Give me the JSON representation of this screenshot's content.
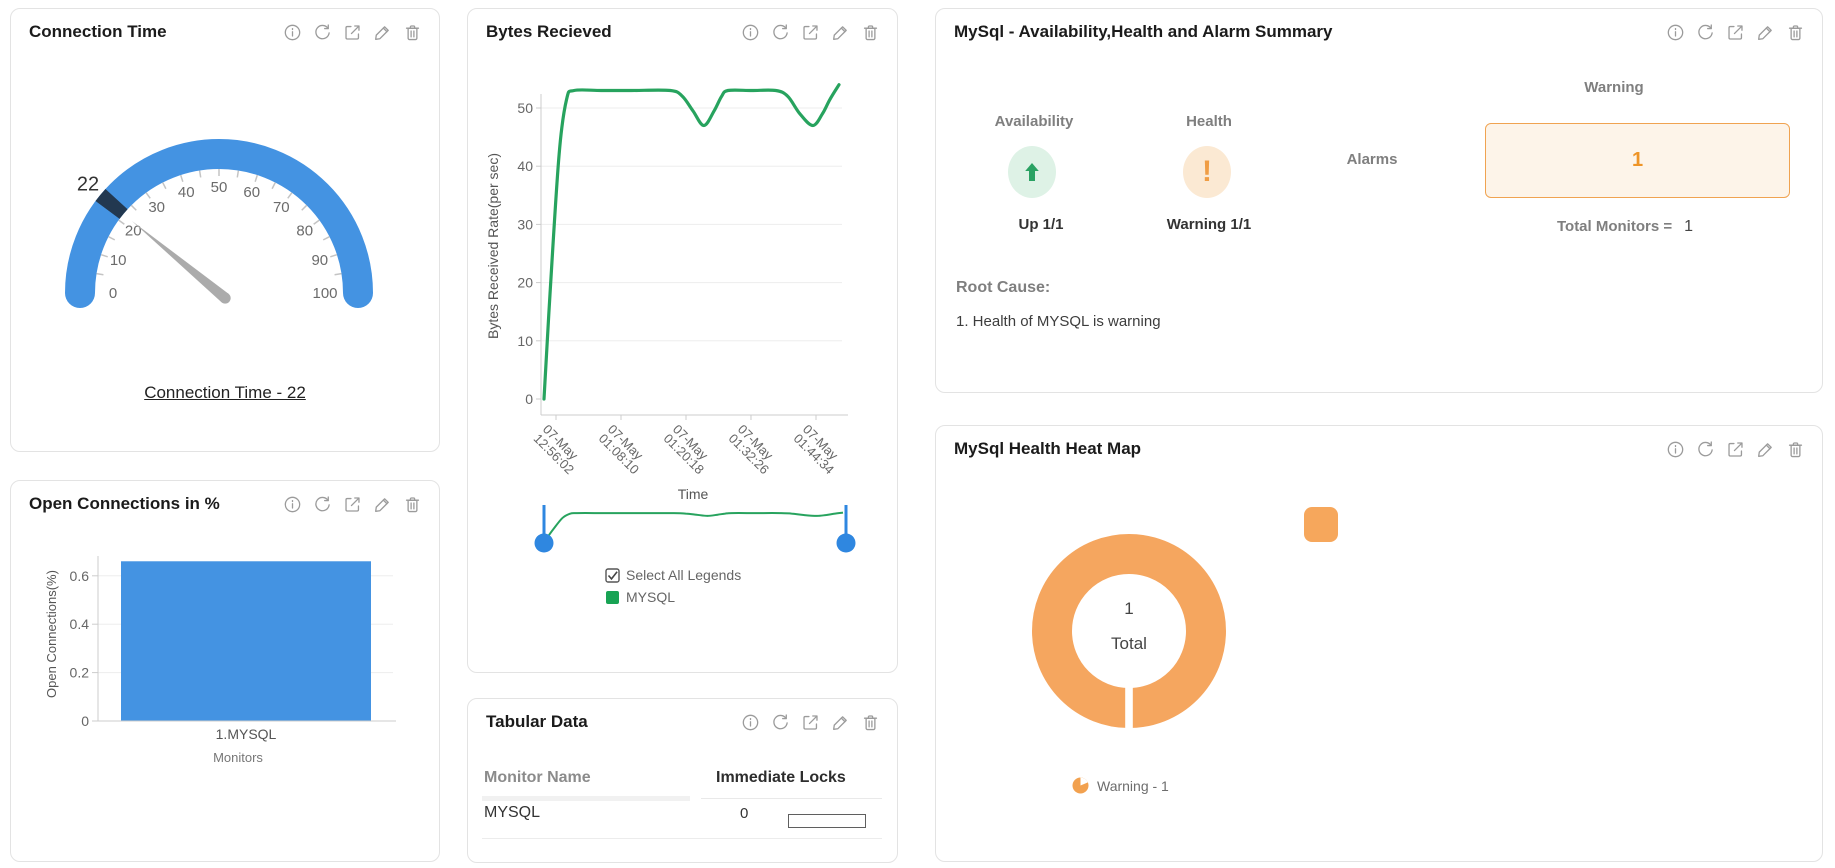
{
  "colors": {
    "blue": "#4493e2",
    "slider_blue": "#2f87e0",
    "line_green": "#27a35e",
    "legend_green": "#18a354",
    "donut_orange": "#f5a65f",
    "gauge_band": "#223850",
    "needle_gray": "#ababab",
    "axis_gray": "#cccccc",
    "grid_gray": "#ededed",
    "tick_text": "#6b6b6b"
  },
  "toolbar": {
    "icons": [
      "info",
      "refresh",
      "open-in-new",
      "edit",
      "delete"
    ]
  },
  "cards": {
    "connection_time": {
      "title": "Connection Time",
      "gauge": {
        "min": 0,
        "max": 100,
        "value": 22,
        "value_label": "22",
        "tick_labels": [
          "0",
          "10",
          "20",
          "30",
          "40",
          "50",
          "60",
          "70",
          "80",
          "90",
          "100"
        ]
      },
      "link_label": "Connection Time - 22"
    },
    "open_connections": {
      "title": "Open Connections in %",
      "ylabel": "Open Connections(%)",
      "xlabel": "Monitors",
      "yticks": [
        0,
        0.2,
        0.4,
        0.6
      ],
      "categories": [
        "1.MYSQL"
      ],
      "values": [
        0.66
      ]
    },
    "bytes_received": {
      "title": "Bytes Recieved",
      "ylabel": "Bytes Received Rate(per sec)",
      "xlabel": "Time",
      "yticks": [
        0,
        10,
        20,
        30,
        40,
        50
      ],
      "xticks": [
        [
          "07-May",
          "12:56:02"
        ],
        [
          "07-May",
          "01:08:10"
        ],
        [
          "07-May",
          "01:20:18"
        ],
        [
          "07-May",
          "01:32:26"
        ],
        [
          "07-May",
          "01:44:34"
        ]
      ],
      "series": {
        "name": "MYSQL",
        "points": [
          [
            0.01,
            0
          ],
          [
            0.03,
            18
          ],
          [
            0.06,
            42
          ],
          [
            0.085,
            51.5
          ],
          [
            0.11,
            53
          ],
          [
            0.2,
            53
          ],
          [
            0.3,
            53
          ],
          [
            0.43,
            53
          ],
          [
            0.47,
            52
          ],
          [
            0.505,
            49.5
          ],
          [
            0.541,
            47
          ],
          [
            0.575,
            49.5
          ],
          [
            0.6,
            52
          ],
          [
            0.621,
            53
          ],
          [
            0.7,
            53
          ],
          [
            0.78,
            53
          ],
          [
            0.82,
            52
          ],
          [
            0.86,
            49
          ],
          [
            0.903,
            47
          ],
          [
            0.935,
            49
          ],
          [
            0.96,
            51.5
          ],
          [
            0.99,
            54
          ]
        ]
      },
      "legend": {
        "select_all_label": "Select All Legends",
        "series_label": "MYSQL",
        "select_all_checked": true
      }
    },
    "tabular_data": {
      "title": "Tabular Data",
      "columns": [
        "Monitor Name",
        "Immediate Locks"
      ],
      "rows": [
        {
          "monitor_name": "MYSQL",
          "immediate_locks": "0"
        }
      ]
    },
    "summary": {
      "title": "MySql - Availability,Health and Alarm Summary",
      "availability": {
        "label": "Availability",
        "status": "Up 1/1"
      },
      "health": {
        "label": "Health",
        "status": "Warning 1/1"
      },
      "alarms": {
        "label": "Alarms",
        "severity_label": "Warning",
        "count": "1"
      },
      "total_monitors": {
        "label": "Total Monitors =",
        "value": "1"
      },
      "root_cause": {
        "label": "Root Cause:",
        "items": [
          "1. Health of MYSQL is warning"
        ]
      }
    },
    "heat_map": {
      "title": "MySql Health Heat Map",
      "donut": {
        "value": "1",
        "label": "Total",
        "slices": [
          {
            "name": "Warning",
            "value": 1
          }
        ]
      },
      "legend_label": "Warning - 1"
    }
  },
  "chart_data": [
    {
      "type": "gauge",
      "title": "Connection Time",
      "min": 0,
      "max": 100,
      "value": 22
    },
    {
      "type": "line",
      "title": "Bytes Recieved",
      "xlabel": "Time",
      "ylabel": "Bytes Received Rate(per sec)",
      "x_ticks": [
        "07-May 12:56:02",
        "07-May 01:08:10",
        "07-May 01:20:18",
        "07-May 01:32:26",
        "07-May 01:44:34"
      ],
      "ylim": [
        0,
        55
      ],
      "series": [
        {
          "name": "MYSQL",
          "approx_values": [
            0,
            53,
            53,
            53,
            47,
            53,
            53,
            47,
            54
          ]
        }
      ],
      "legend_position": "bottom"
    },
    {
      "type": "bar",
      "title": "Open Connections in %",
      "categories": [
        "1.MYSQL"
      ],
      "values": [
        0.66
      ],
      "xlabel": "Monitors",
      "ylabel": "Open Connections(%)",
      "ylim": [
        0,
        0.7
      ]
    },
    {
      "type": "pie",
      "title": "MySql Health Heat Map",
      "slices": [
        {
          "name": "Warning",
          "value": 1
        }
      ],
      "center_text": [
        "1",
        "Total"
      ],
      "legend": [
        "Warning - 1"
      ]
    },
    {
      "type": "table",
      "title": "Tabular Data",
      "columns": [
        "Monitor Name",
        "Immediate Locks"
      ],
      "rows": [
        [
          "MYSQL",
          "0"
        ]
      ]
    }
  ]
}
